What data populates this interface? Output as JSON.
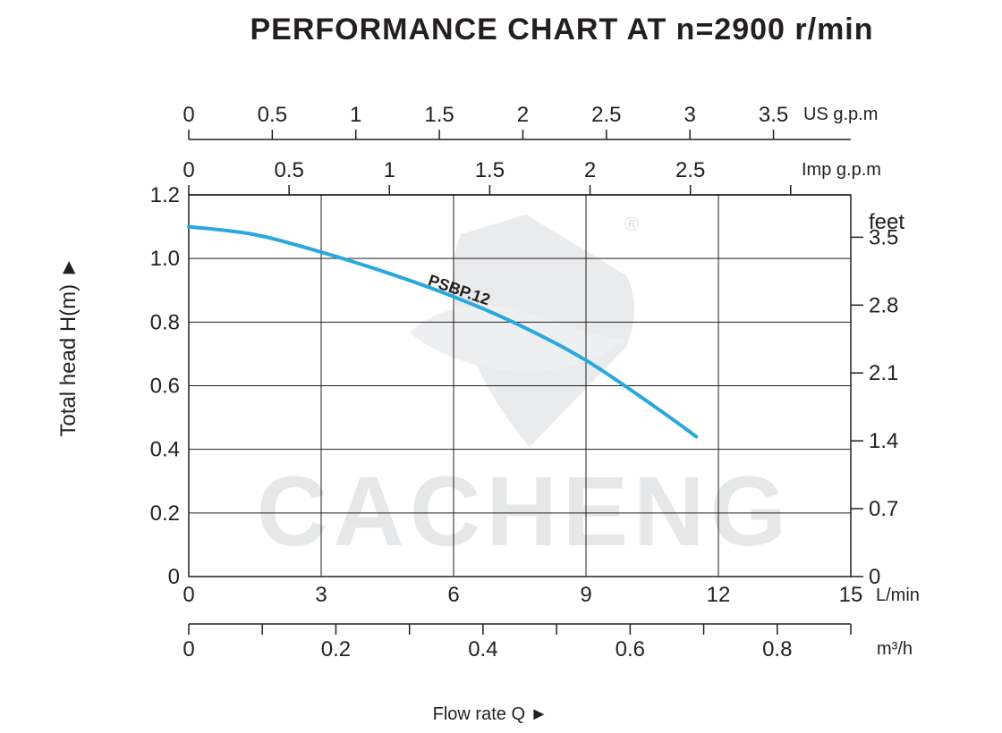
{
  "chart_data": {
    "type": "line",
    "title": "PERFORMANCE CHART AT n=2900 r/min",
    "xlabel": "Flow rate  Q ►",
    "ylabel": "Total  head H(m) ►",
    "x_unit": "L/min",
    "xlim": [
      0,
      15
    ],
    "x_ticks": [
      "0",
      "3",
      "6",
      "9",
      "12",
      "15"
    ],
    "ylim": [
      0,
      1.2
    ],
    "y_ticks": [
      "0",
      "0.2",
      "0.4",
      "0.6",
      "0.8",
      "1.0",
      "1.2"
    ],
    "grid": true,
    "secondary_axes": {
      "us_gpm": {
        "unit": "US g.p.m",
        "ticks": [
          "0",
          "0.5",
          "1",
          "1.5",
          "2",
          "2.5",
          "3",
          "3.5"
        ],
        "factor_lpm": 3.785
      },
      "imp_gpm": {
        "unit": "Imp g.p.m",
        "ticks": [
          "0",
          "0.5",
          "1",
          "1.5",
          "2",
          "2.5"
        ],
        "factor_lpm": 4.546
      },
      "feet": {
        "unit": "feet",
        "ticks": [
          "0",
          "0.7",
          "1.4",
          "2.1",
          "2.8",
          "3.5"
        ],
        "factor_m": 0.3048
      },
      "m3h": {
        "unit": "m³/h",
        "ticks": [
          "0",
          "0.2",
          "0.4",
          "0.6",
          "0.8"
        ],
        "minor_step": 0.1,
        "max": 0.9,
        "factor_lpm": 16.6667
      }
    },
    "series": [
      {
        "name": "PSBP.12",
        "color": "#29a7df",
        "x": [
          0,
          1.5,
          3,
          4.5,
          6,
          7.5,
          9,
          10.5,
          11.5
        ],
        "y": [
          1.1,
          1.075,
          1.02,
          0.955,
          0.88,
          0.79,
          0.68,
          0.54,
          0.44
        ]
      }
    ]
  },
  "watermark": {
    "text": "CACHENG",
    "registered": "®",
    "color": "#e6e7e8"
  }
}
